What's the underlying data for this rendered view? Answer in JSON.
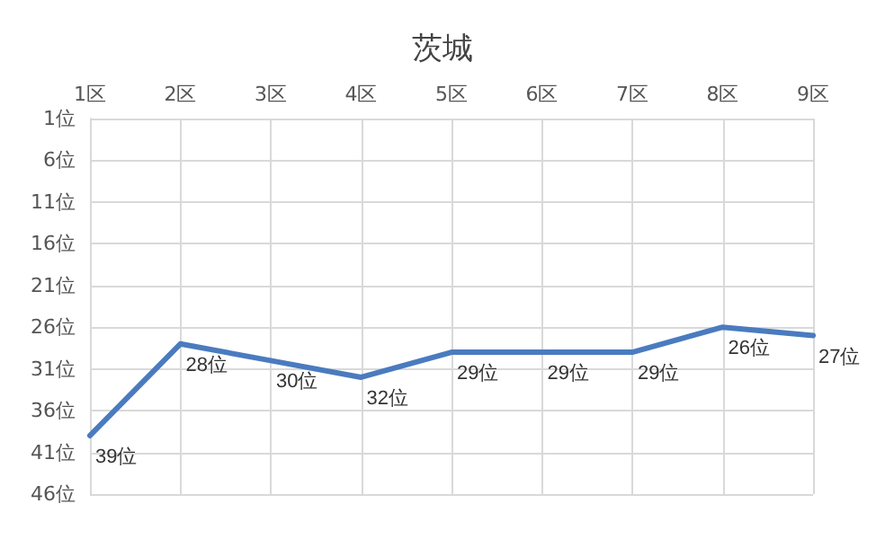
{
  "chart_data": {
    "type": "line",
    "title": "茨城",
    "categories": [
      "1区",
      "2区",
      "3区",
      "4区",
      "5区",
      "6区",
      "7区",
      "8区",
      "9区"
    ],
    "series": [
      {
        "color": "#4a7bbf",
        "values": [
          39,
          28,
          30,
          32,
          29,
          29,
          29,
          26,
          27
        ],
        "value_labels": [
          "39位",
          "28位",
          "30位",
          "32位",
          "29位",
          "29位",
          "29位",
          "26位",
          "27位"
        ]
      }
    ],
    "ylim": [
      46,
      1
    ],
    "yticks": [
      {
        "value": 1,
        "label": "1位"
      },
      {
        "value": 6,
        "label": "6位"
      },
      {
        "value": 11,
        "label": "11位"
      },
      {
        "value": 16,
        "label": "16位"
      },
      {
        "value": 21,
        "label": "21位"
      },
      {
        "value": 26,
        "label": "26位"
      },
      {
        "value": 31,
        "label": "31位"
      },
      {
        "value": 36,
        "label": "36位"
      },
      {
        "value": 41,
        "label": "41位"
      },
      {
        "value": 46,
        "label": "46位"
      }
    ],
    "grid": true,
    "marker": "none",
    "line_style": "solid"
  }
}
